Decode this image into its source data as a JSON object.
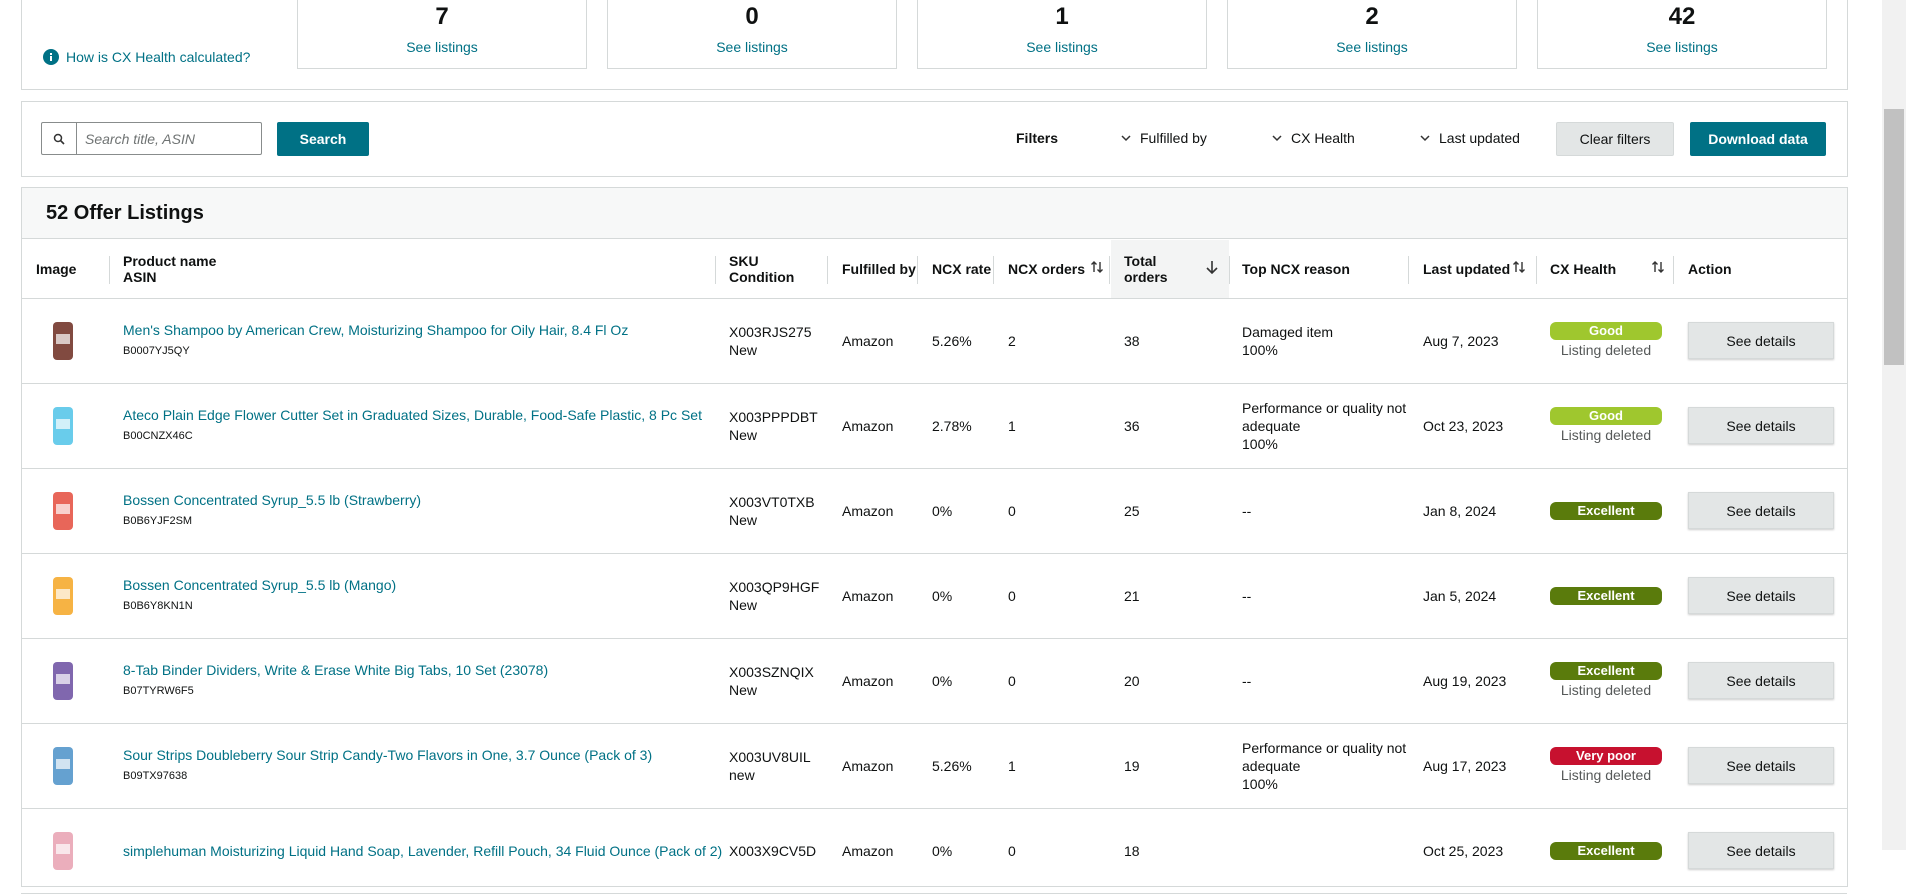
{
  "summary": {
    "help_link": "How is CX Health calculated?",
    "stats": [
      {
        "count": "7",
        "link": "See listings"
      },
      {
        "count": "0",
        "link": "See listings"
      },
      {
        "count": "1",
        "link": "See listings"
      },
      {
        "count": "2",
        "link": "See listings"
      },
      {
        "count": "42",
        "link": "See listings"
      }
    ]
  },
  "toolbar": {
    "search_placeholder": "Search title, ASIN",
    "search_button": "Search",
    "filters_label": "Filters",
    "filters": [
      "Fulfilled by",
      "CX Health",
      "Last updated"
    ],
    "clear_button": "Clear filters",
    "download_button": "Download data"
  },
  "table": {
    "title": "52 Offer Listings",
    "columns": [
      [
        "Image"
      ],
      [
        "Product name",
        "ASIN"
      ],
      [
        "SKU",
        "Condition"
      ],
      [
        "Fulfilled by"
      ],
      [
        "NCX rate"
      ],
      [
        "NCX orders"
      ],
      [
        "Total",
        "orders"
      ],
      [
        "Top NCX reason"
      ],
      [
        "Last updated"
      ],
      [
        "CX Health"
      ],
      [
        "Action"
      ]
    ],
    "rows": [
      {
        "name": "Men's Shampoo by American Crew, Moisturizing Shampoo for Oily Hair, 8.4 Fl Oz",
        "asin": "B0007YJ5QY",
        "sku": "X003RJS275",
        "condition": "New",
        "fulfilled": "Amazon",
        "ncx_rate": "5.26%",
        "ncx_orders": "2",
        "total": "38",
        "reason": "Damaged item",
        "reason_pct": "100%",
        "updated": "Aug 7, 2023",
        "health": "Good",
        "status": "Listing deleted",
        "action": "See details"
      },
      {
        "name": "Ateco Plain Edge Flower Cutter Set in Graduated Sizes, Durable, Food-Safe Plastic, 8 Pc Set",
        "asin": "B00CNZX46C",
        "sku": "X003PPPDBT",
        "condition": "New",
        "fulfilled": "Amazon",
        "ncx_rate": "2.78%",
        "ncx_orders": "1",
        "total": "36",
        "reason": "Performance or quality not adequate",
        "reason_pct": "100%",
        "updated": "Oct 23, 2023",
        "health": "Good",
        "status": "Listing deleted",
        "action": "See details"
      },
      {
        "name": "Bossen Concentrated Syrup_5.5 lb (Strawberry)",
        "asin": "B0B6YJF2SM",
        "sku": "X003VT0TXB",
        "condition": "New",
        "fulfilled": "Amazon",
        "ncx_rate": "0%",
        "ncx_orders": "0",
        "total": "25",
        "reason": "--",
        "updated": "Jan 8, 2024",
        "health": "Excellent",
        "action": "See details"
      },
      {
        "name": "Bossen Concentrated Syrup_5.5 lb (Mango)",
        "asin": "B0B6Y8KN1N",
        "sku": "X003QP9HGF",
        "condition": "New",
        "fulfilled": "Amazon",
        "ncx_rate": "0%",
        "ncx_orders": "0",
        "total": "21",
        "reason": "--",
        "updated": "Jan 5, 2024",
        "health": "Excellent",
        "action": "See details"
      },
      {
        "name": "8-Tab Binder Dividers, Write & Erase White Big Tabs, 10 Set (23078)",
        "asin": "B07TYRW6F5",
        "sku": "X003SZNQIX",
        "condition": "New",
        "fulfilled": "Amazon",
        "ncx_rate": "0%",
        "ncx_orders": "0",
        "total": "20",
        "reason": "--",
        "updated": "Aug 19, 2023",
        "health": "Excellent",
        "status": "Listing deleted",
        "action": "See details"
      },
      {
        "name": "Sour Strips Doubleberry Sour Strip Candy-Two Flavors in One, 3.7 Ounce (Pack of 3)",
        "asin": "B09TX97638",
        "sku": "X003UV8UIL",
        "condition": "new",
        "fulfilled": "Amazon",
        "ncx_rate": "5.26%",
        "ncx_orders": "1",
        "total": "19",
        "reason": "Performance or quality not adequate",
        "reason_pct": "100%",
        "updated": "Aug 17, 2023",
        "health": "Very poor",
        "status": "Listing deleted",
        "action": "See details"
      },
      {
        "name": "simplehuman Moisturizing Liquid Hand Soap, Lavender, Refill Pouch, 34 Fluid Ounce (Pack of 2)",
        "sku": "X003X9CV5D",
        "fulfilled": "Amazon",
        "ncx_rate": "0%",
        "ncx_orders": "0",
        "total": "18",
        "updated": "Oct 25, 2023",
        "health": "Excellent",
        "action": "See details"
      }
    ]
  }
}
